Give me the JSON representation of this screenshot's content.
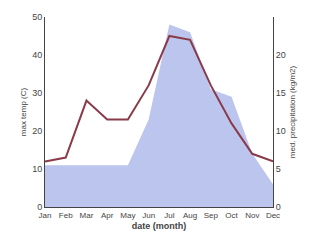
{
  "chart_data": {
    "type": "line",
    "categories": [
      "Jan",
      "Feb",
      "Mar",
      "Apr",
      "May",
      "Jun",
      "Jul",
      "Aug",
      "Sep",
      "Oct",
      "Nov",
      "Dec"
    ],
    "series": [
      {
        "type": "area",
        "axis": "y2",
        "color": "#BCC5EE",
        "values": [
          5.5,
          5.5,
          5.5,
          5.5,
          5.5,
          11.5,
          24,
          23,
          15.5,
          14.5,
          7,
          3
        ]
      },
      {
        "type": "line",
        "color": "#8B3A4A",
        "values": [
          12,
          13,
          28,
          23,
          23,
          32,
          45,
          44,
          32,
          22,
          14,
          12
        ]
      }
    ],
    "xlabel": "date (month)",
    "ylabel": "max temp (C)",
    "y2label": "med. precipitation (kg/m2)",
    "ylim": [
      0,
      50
    ],
    "yticks": [
      0,
      10,
      20,
      30,
      40,
      50
    ],
    "y2lim": [
      0,
      25
    ],
    "y2ticks": [
      0,
      5,
      10,
      15,
      20
    ],
    "grid": false
  }
}
